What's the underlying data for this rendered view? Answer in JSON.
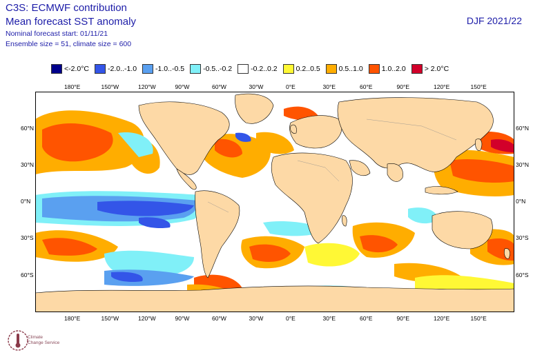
{
  "header": {
    "title": "C3S: ECMWF contribution",
    "subtitle": "Mean forecast SST anomaly",
    "forecast_start": "Nominal forecast start: 01/11/21",
    "ensemble": "Ensemble size = 51, climate size = 600",
    "season": "DJF 2021/22"
  },
  "legend": [
    {
      "label": "<-2.0°C",
      "color": "#00008c"
    },
    {
      "label": "-2.0..-1.0",
      "color": "#3355e8"
    },
    {
      "label": "-1.0..-0.5",
      "color": "#5aa0f0"
    },
    {
      "label": "-0.5..-0.2",
      "color": "#80f0f8"
    },
    {
      "label": "-0.2..0.2",
      "color": "#ffffff"
    },
    {
      "label": "0.2..0.5",
      "color": "#fff835"
    },
    {
      "label": "0.5..1.0",
      "color": "#ffad00"
    },
    {
      "label": "1.0..2.0",
      "color": "#ff5400"
    },
    {
      "label": "> 2.0°C",
      "color": "#d2002a"
    }
  ],
  "map": {
    "land_color": "#fdd9a6",
    "x_ticks": [
      "180°E",
      "150°W",
      "120°W",
      "90°W",
      "60°W",
      "30°W",
      "0°E",
      "30°E",
      "60°E",
      "90°E",
      "120°E",
      "150°E"
    ],
    "y_ticks": [
      "60°N",
      "30°N",
      "0°N",
      "30°S",
      "60°S"
    ]
  },
  "logo": {
    "line1": "Climate",
    "line2": "Change Service"
  }
}
